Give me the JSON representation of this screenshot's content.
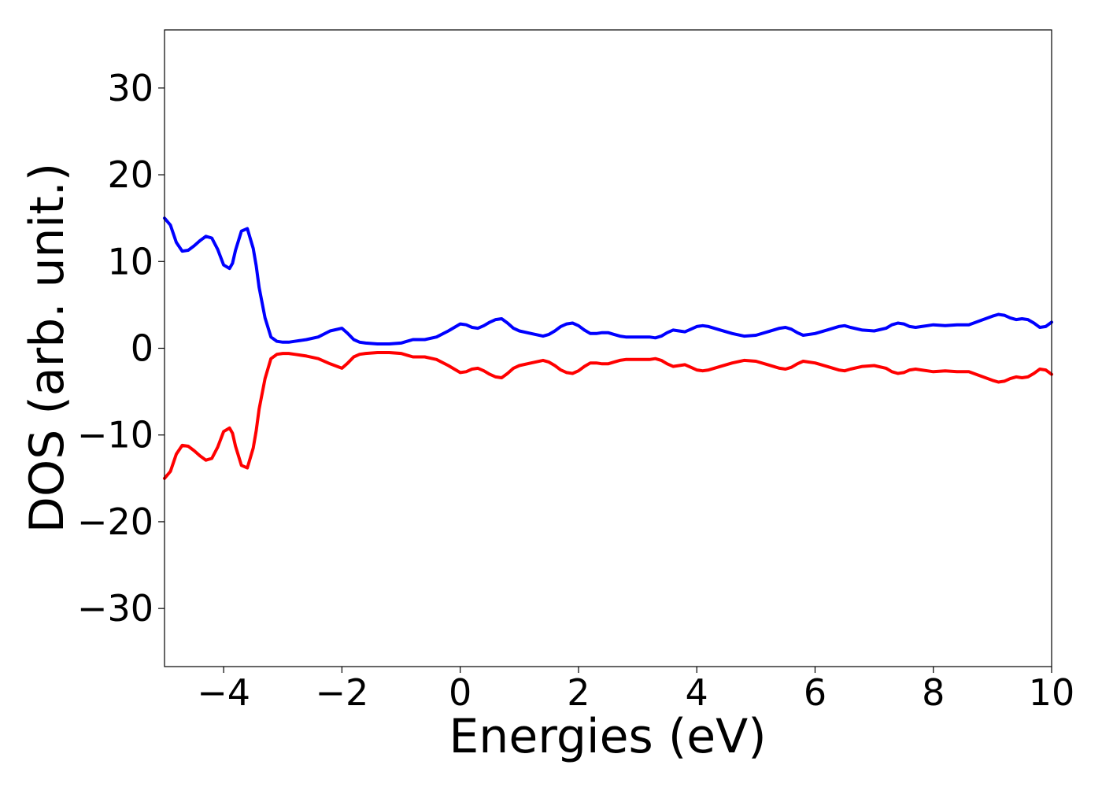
{
  "chart_data": {
    "type": "line",
    "title": "",
    "xlabel": "Energies (eV)",
    "ylabel": "DOS (arb. unit.)",
    "xlim": [
      -5,
      10
    ],
    "ylim": [
      -36.7,
      36.7
    ],
    "grid": false,
    "legend": "none",
    "xticks": [
      -4,
      -2,
      0,
      2,
      4,
      6,
      8,
      10
    ],
    "xtick_labels": [
      "−4",
      "−2",
      "0",
      "2",
      "4",
      "6",
      "8",
      "10"
    ],
    "yticks": [
      30,
      20,
      10,
      0,
      -10,
      -20,
      -30
    ],
    "ytick_labels": [
      "30",
      "20",
      "10",
      "0",
      "−10",
      "−20",
      "−30"
    ],
    "series": [
      {
        "color": "#0000ff",
        "x": [
          -5.0,
          -4.9,
          -4.8,
          -4.7,
          -4.6,
          -4.5,
          -4.4,
          -4.3,
          -4.2,
          -4.1,
          -4.0,
          -3.9,
          -3.85,
          -3.8,
          -3.7,
          -3.6,
          -3.5,
          -3.45,
          -3.4,
          -3.3,
          -3.2,
          -3.1,
          -3.0,
          -2.9,
          -2.8,
          -2.6,
          -2.4,
          -2.2,
          -2.0,
          -1.9,
          -1.8,
          -1.7,
          -1.6,
          -1.4,
          -1.2,
          -1.0,
          -0.9,
          -0.8,
          -0.6,
          -0.4,
          -0.2,
          0.0,
          0.1,
          0.2,
          0.3,
          0.4,
          0.5,
          0.6,
          0.7,
          0.8,
          0.9,
          1.0,
          1.2,
          1.4,
          1.5,
          1.6,
          1.7,
          1.8,
          1.9,
          2.0,
          2.1,
          2.2,
          2.3,
          2.4,
          2.5,
          2.6,
          2.7,
          2.8,
          3.0,
          3.2,
          3.3,
          3.4,
          3.5,
          3.6,
          3.7,
          3.8,
          3.9,
          4.0,
          4.1,
          4.2,
          4.4,
          4.6,
          4.8,
          5.0,
          5.2,
          5.4,
          5.5,
          5.6,
          5.7,
          5.8,
          6.0,
          6.2,
          6.4,
          6.5,
          6.6,
          6.8,
          7.0,
          7.2,
          7.3,
          7.4,
          7.5,
          7.6,
          7.7,
          7.8,
          7.9,
          8.0,
          8.2,
          8.4,
          8.6,
          8.8,
          9.0,
          9.1,
          9.2,
          9.3,
          9.4,
          9.5,
          9.6,
          9.7,
          9.8,
          9.9,
          10.0
        ],
        "y": [
          15.0,
          14.2,
          12.2,
          11.2,
          11.3,
          11.8,
          12.4,
          12.9,
          12.7,
          11.4,
          9.6,
          9.2,
          9.8,
          11.3,
          13.5,
          13.8,
          11.5,
          9.5,
          7.0,
          3.5,
          1.3,
          0.8,
          0.7,
          0.7,
          0.8,
          1.0,
          1.3,
          2.0,
          2.3,
          1.7,
          1.0,
          0.7,
          0.6,
          0.5,
          0.5,
          0.6,
          0.8,
          1.0,
          1.0,
          1.3,
          2.0,
          2.8,
          2.7,
          2.4,
          2.3,
          2.6,
          3.0,
          3.3,
          3.4,
          2.9,
          2.3,
          2.0,
          1.7,
          1.4,
          1.6,
          2.0,
          2.5,
          2.8,
          2.9,
          2.6,
          2.1,
          1.7,
          1.7,
          1.8,
          1.8,
          1.6,
          1.4,
          1.3,
          1.3,
          1.3,
          1.2,
          1.4,
          1.8,
          2.1,
          2.0,
          1.9,
          2.2,
          2.5,
          2.6,
          2.5,
          2.1,
          1.7,
          1.4,
          1.5,
          1.9,
          2.3,
          2.4,
          2.2,
          1.8,
          1.5,
          1.7,
          2.1,
          2.5,
          2.6,
          2.4,
          2.1,
          2.0,
          2.3,
          2.7,
          2.9,
          2.8,
          2.5,
          2.4,
          2.5,
          2.6,
          2.7,
          2.6,
          2.7,
          2.7,
          3.2,
          3.7,
          3.9,
          3.8,
          3.5,
          3.3,
          3.4,
          3.3,
          2.9,
          2.4,
          2.5,
          3.0
        ]
      },
      {
        "color": "#ff0000",
        "x": [
          -5.0,
          -4.9,
          -4.8,
          -4.7,
          -4.6,
          -4.5,
          -4.4,
          -4.3,
          -4.2,
          -4.1,
          -4.0,
          -3.9,
          -3.85,
          -3.8,
          -3.7,
          -3.6,
          -3.5,
          -3.45,
          -3.4,
          -3.3,
          -3.2,
          -3.1,
          -3.0,
          -2.9,
          -2.8,
          -2.6,
          -2.4,
          -2.2,
          -2.0,
          -1.9,
          -1.8,
          -1.7,
          -1.6,
          -1.4,
          -1.2,
          -1.0,
          -0.9,
          -0.8,
          -0.6,
          -0.4,
          -0.2,
          0.0,
          0.1,
          0.2,
          0.3,
          0.4,
          0.5,
          0.6,
          0.7,
          0.8,
          0.9,
          1.0,
          1.2,
          1.4,
          1.5,
          1.6,
          1.7,
          1.8,
          1.9,
          2.0,
          2.1,
          2.2,
          2.3,
          2.4,
          2.5,
          2.6,
          2.7,
          2.8,
          3.0,
          3.2,
          3.3,
          3.4,
          3.5,
          3.6,
          3.7,
          3.8,
          3.9,
          4.0,
          4.1,
          4.2,
          4.4,
          4.6,
          4.8,
          5.0,
          5.2,
          5.4,
          5.5,
          5.6,
          5.7,
          5.8,
          6.0,
          6.2,
          6.4,
          6.5,
          6.6,
          6.8,
          7.0,
          7.2,
          7.3,
          7.4,
          7.5,
          7.6,
          7.7,
          7.8,
          7.9,
          8.0,
          8.2,
          8.4,
          8.6,
          8.8,
          9.0,
          9.1,
          9.2,
          9.3,
          9.4,
          9.5,
          9.6,
          9.7,
          9.8,
          9.9,
          10.0
        ],
        "y": [
          -15.0,
          -14.2,
          -12.2,
          -11.2,
          -11.3,
          -11.8,
          -12.4,
          -12.9,
          -12.7,
          -11.4,
          -9.6,
          -9.2,
          -9.8,
          -11.3,
          -13.5,
          -13.8,
          -11.5,
          -9.5,
          -7.0,
          -3.5,
          -1.2,
          -0.7,
          -0.6,
          -0.6,
          -0.7,
          -0.9,
          -1.2,
          -1.8,
          -2.3,
          -1.7,
          -1.0,
          -0.7,
          -0.6,
          -0.5,
          -0.5,
          -0.6,
          -0.8,
          -1.0,
          -1.0,
          -1.3,
          -2.0,
          -2.8,
          -2.7,
          -2.4,
          -2.3,
          -2.6,
          -3.0,
          -3.3,
          -3.4,
          -2.9,
          -2.3,
          -2.0,
          -1.7,
          -1.4,
          -1.6,
          -2.0,
          -2.5,
          -2.8,
          -2.9,
          -2.6,
          -2.1,
          -1.7,
          -1.7,
          -1.8,
          -1.8,
          -1.6,
          -1.4,
          -1.3,
          -1.3,
          -1.3,
          -1.2,
          -1.4,
          -1.8,
          -2.1,
          -2.0,
          -1.9,
          -2.2,
          -2.5,
          -2.6,
          -2.5,
          -2.1,
          -1.7,
          -1.4,
          -1.5,
          -1.9,
          -2.3,
          -2.4,
          -2.2,
          -1.8,
          -1.5,
          -1.7,
          -2.1,
          -2.5,
          -2.6,
          -2.4,
          -2.1,
          -2.0,
          -2.3,
          -2.7,
          -2.9,
          -2.8,
          -2.5,
          -2.4,
          -2.5,
          -2.6,
          -2.7,
          -2.6,
          -2.7,
          -2.7,
          -3.2,
          -3.7,
          -3.9,
          -3.8,
          -3.5,
          -3.3,
          -3.4,
          -3.3,
          -2.9,
          -2.4,
          -2.5,
          -3.0
        ]
      }
    ]
  }
}
